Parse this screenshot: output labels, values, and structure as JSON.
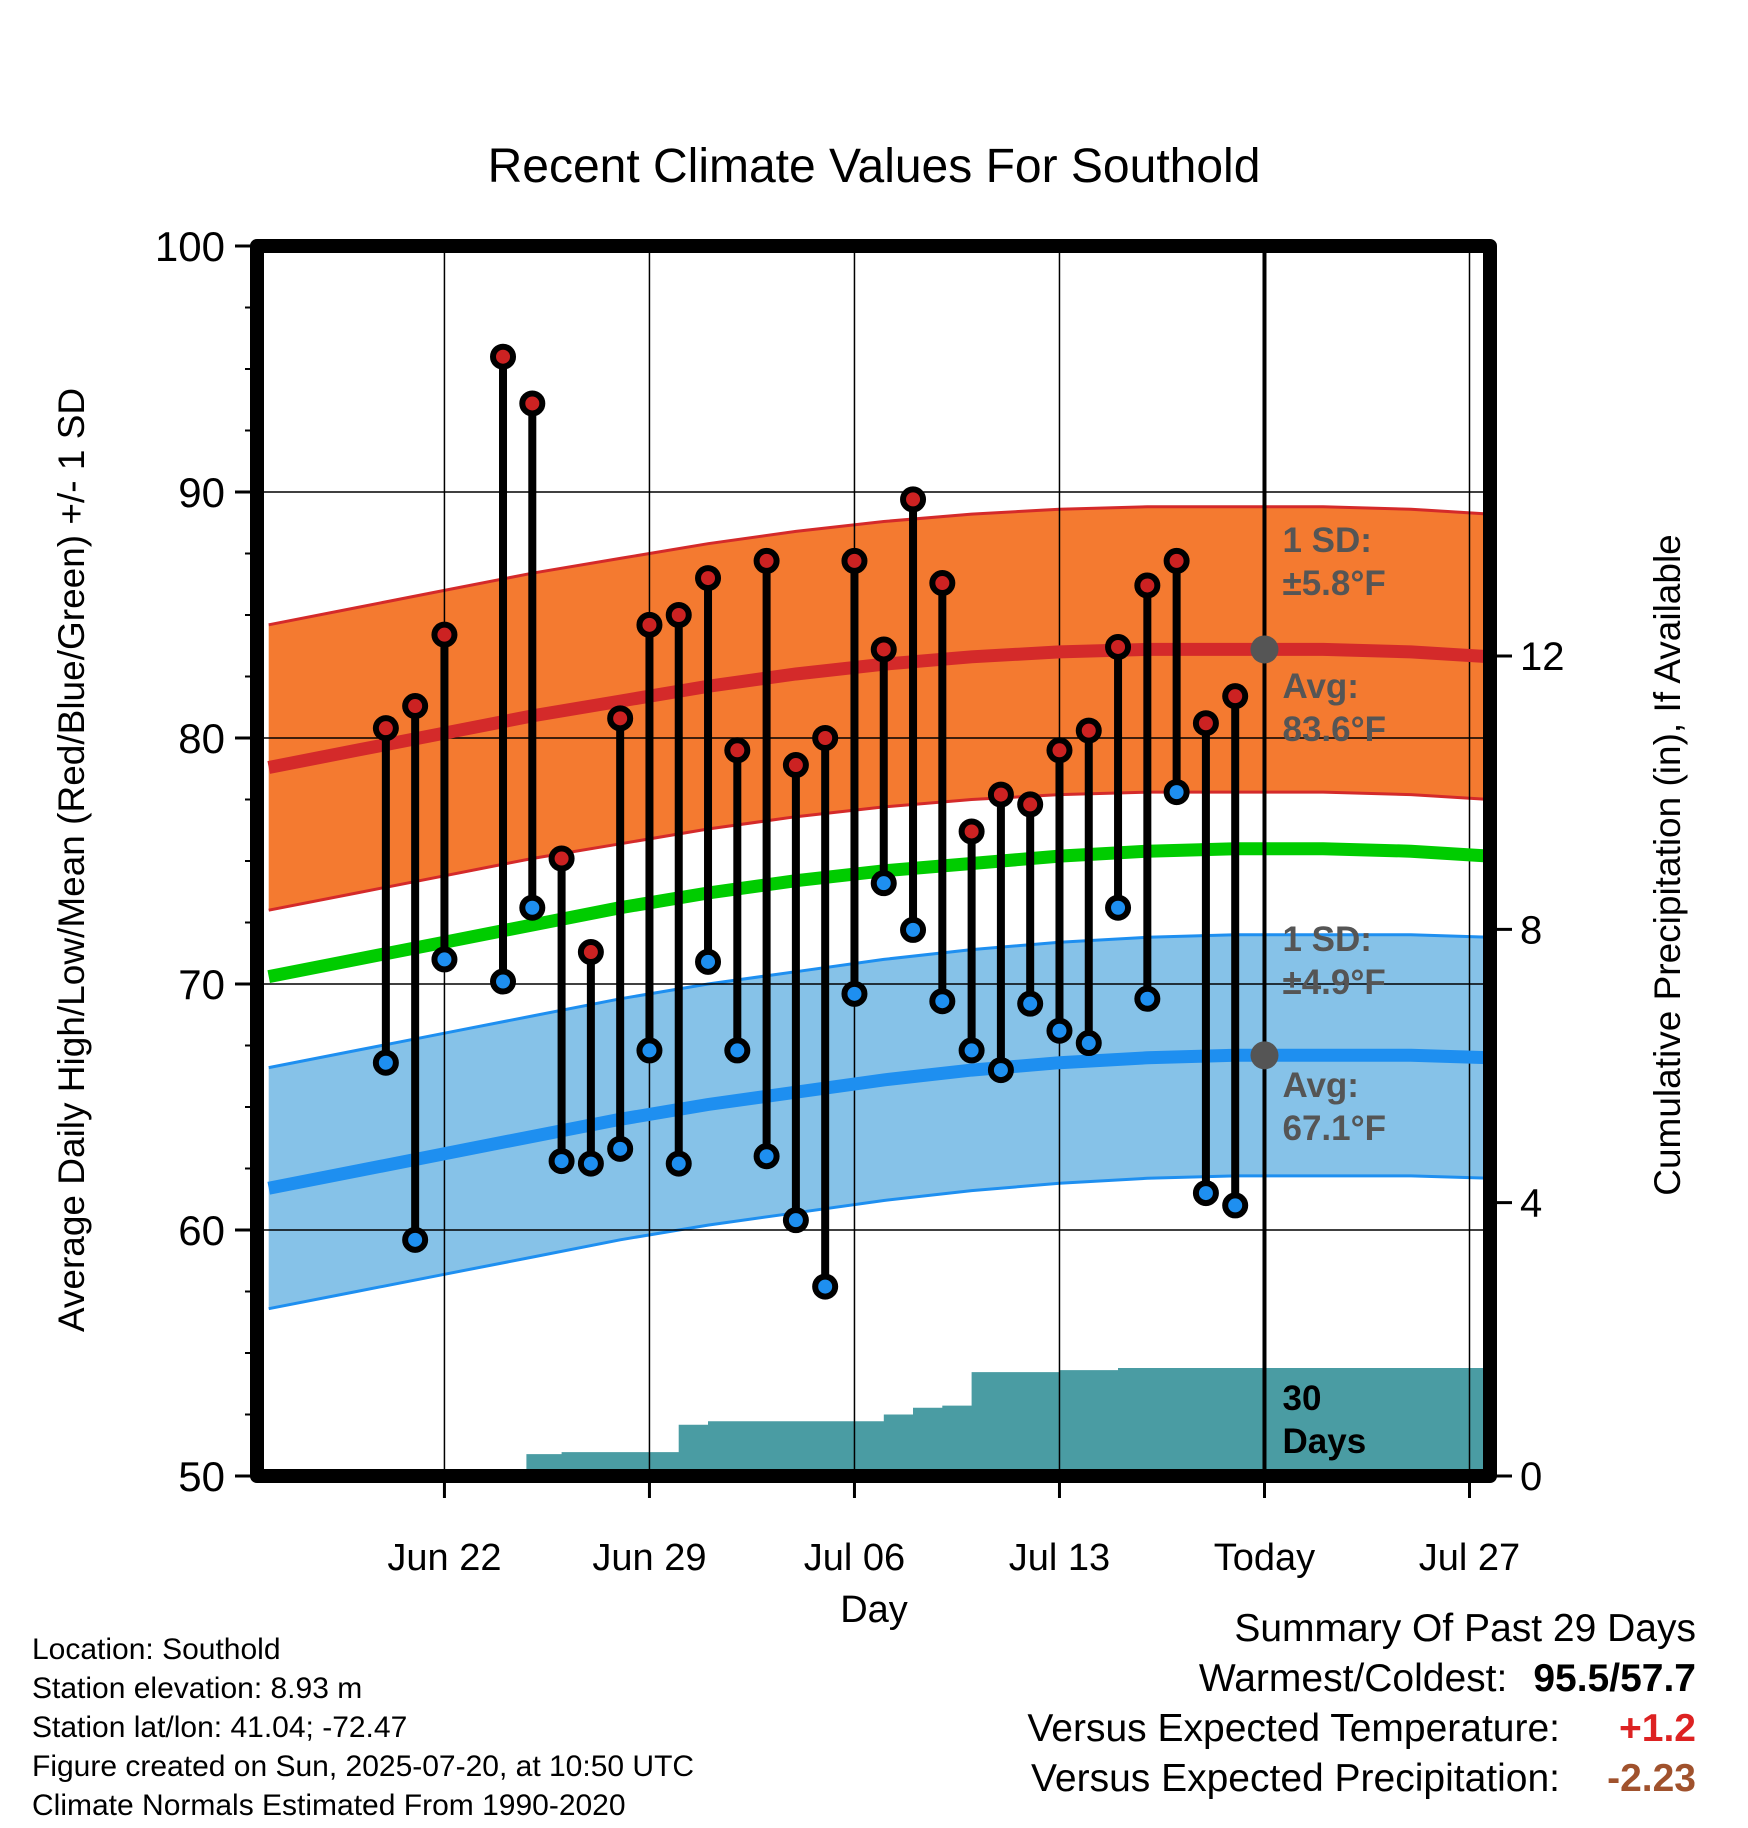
{
  "colors": {
    "high_dot": "#cc2222",
    "low_dot": "#1e8ff0",
    "high_band": "#f47a30",
    "high_band_edge": "#d42a2a",
    "high_avg_line": "#d42a2a",
    "low_band": "#86c2e8",
    "low_band_edge": "#1e8ff0",
    "low_avg_line": "#1e8ff0",
    "mean_line": "#00cc00",
    "precip_fill": "#4a9ca3",
    "annotation": "#555555",
    "expected_temp": "#dd2222",
    "expected_precip": "#a0522d"
  },
  "chart_data": {
    "type": "line",
    "title": "Recent Climate Values For Southold",
    "xlabel": "Day",
    "ylabel": "Average Daily High/Low/Mean (Red/Blue/Green) +/- 1 SD",
    "y2label": "Cumulative Precipitation (in), If Available",
    "ylim": [
      50,
      100
    ],
    "y2lim": [
      0,
      18
    ],
    "xlim": [
      -3.4,
      38.7
    ],
    "x_tick_positions": [
      3,
      10,
      17,
      24,
      31,
      38
    ],
    "x_tick_labels": [
      "Jun 22",
      "Jun 29",
      "Jul 06",
      "Jul 13",
      "Today",
      "Jul 27"
    ],
    "y_ticks": [
      50,
      60,
      70,
      80,
      90,
      100
    ],
    "y2_ticks": [
      0,
      4,
      8,
      12
    ],
    "y2_tick_labels": [
      "0",
      "4",
      "8",
      "12"
    ],
    "today_x": 31,
    "observations": {
      "x": [
        1,
        2,
        3,
        5,
        6,
        7,
        8,
        9,
        10,
        11,
        12,
        13,
        14,
        15,
        16,
        17,
        18,
        19,
        20,
        21,
        22,
        23,
        24,
        25,
        26,
        27,
        28,
        29,
        30
      ],
      "high": [
        80.4,
        81.3,
        84.2,
        95.5,
        93.6,
        75.1,
        71.3,
        80.8,
        84.6,
        85.0,
        86.5,
        79.5,
        87.2,
        78.9,
        80.0,
        87.2,
        83.6,
        89.7,
        86.3,
        76.2,
        77.7,
        77.3,
        79.5,
        80.3,
        83.7,
        86.2,
        87.2,
        80.6,
        81.7
      ],
      "low": [
        66.8,
        59.6,
        71.0,
        70.1,
        73.1,
        62.8,
        62.7,
        63.3,
        67.3,
        62.7,
        70.9,
        67.3,
        63.0,
        60.4,
        57.7,
        69.6,
        74.1,
        72.2,
        69.3,
        67.3,
        66.5,
        69.2,
        68.1,
        67.6,
        73.1,
        69.4,
        77.8,
        61.5,
        61.0
      ]
    },
    "normals": {
      "x": [
        -3.0,
        0,
        3,
        6,
        9,
        12,
        15,
        18,
        21,
        24,
        27,
        30,
        33,
        36,
        38.7
      ],
      "high_avg": [
        78.8,
        79.5,
        80.2,
        80.9,
        81.5,
        82.1,
        82.6,
        83.0,
        83.3,
        83.5,
        83.6,
        83.6,
        83.6,
        83.5,
        83.3
      ],
      "high_sd": 5.8,
      "low_avg": [
        61.7,
        62.4,
        63.1,
        63.8,
        64.5,
        65.1,
        65.6,
        66.1,
        66.5,
        66.8,
        67.0,
        67.1,
        67.1,
        67.1,
        67.0
      ],
      "low_sd": 4.9,
      "mean_avg": [
        70.3,
        71.0,
        71.7,
        72.4,
        73.1,
        73.7,
        74.2,
        74.6,
        74.9,
        75.2,
        75.4,
        75.5,
        75.5,
        75.4,
        75.2
      ]
    },
    "precip": {
      "x": [
        -3.0,
        3.6,
        3.6,
        5.8,
        5.8,
        7.0,
        7.0,
        8.4,
        8.4,
        9.0,
        9.0,
        11.0,
        11.0,
        12.0,
        12.0,
        16.0,
        16.0,
        18.0,
        18.0,
        19.0,
        19.0,
        20.0,
        20.0,
        21.0,
        21.0,
        24.0,
        24.0,
        26.0,
        26.0,
        38.7
      ],
      "y": [
        0,
        0,
        0.03,
        0.03,
        0.32,
        0.32,
        0.35,
        0.35,
        0.35,
        0.35,
        0.35,
        0.35,
        0.75,
        0.75,
        0.8,
        0.8,
        0.8,
        0.8,
        0.9,
        0.9,
        1.0,
        1.0,
        1.03,
        1.03,
        1.52,
        1.52,
        1.55,
        1.55,
        1.58,
        1.58
      ]
    },
    "annotations": {
      "high_sd_label": "1 SD:",
      "high_sd_value": "±5.8°F",
      "high_avg_label": "Avg:",
      "high_avg_value": "83.6°F",
      "low_sd_label": "1 SD:",
      "low_sd_value": "±4.9°F",
      "low_avg_label": "Avg:",
      "low_avg_value": "67.1°F",
      "window_count": "30",
      "window_unit": "Days"
    }
  },
  "info": {
    "location": "Location: Southold",
    "elevation": "Station elevation: 8.93 m",
    "latlon": "Station lat/lon: 41.04; -72.47",
    "created": "Figure created on Sun, 2025-07-20, at 10:50 UTC",
    "normals": "Climate Normals Estimated From 1990-2020"
  },
  "summary": {
    "heading": "Summary Of Past 29 Days",
    "warmest_coldest_label": "Warmest/Coldest:",
    "warmest_coldest_value": "95.5/57.7",
    "expected_temp_label": "Versus Expected Temperature:",
    "expected_temp_value": "+1.2",
    "expected_precip_label": "Versus Expected Precipitation:",
    "expected_precip_value": "-2.23"
  }
}
